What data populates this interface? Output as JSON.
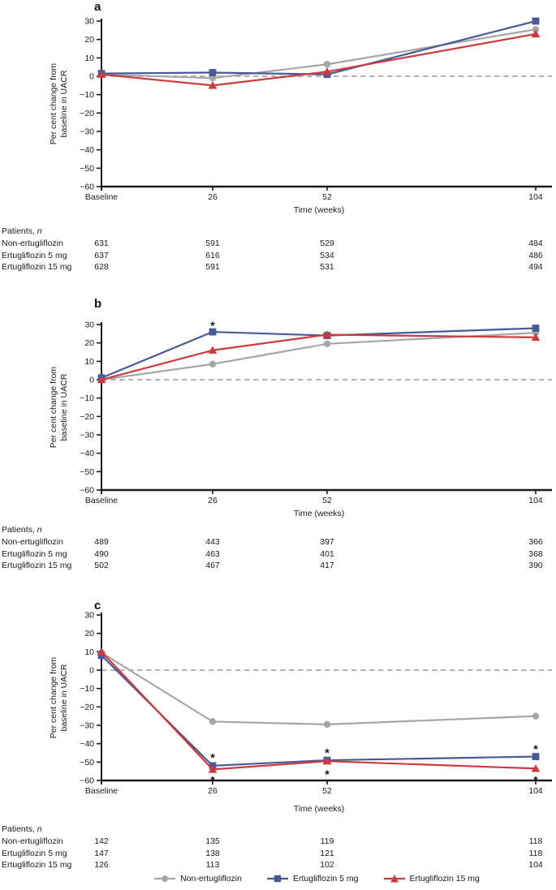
{
  "figure": {
    "legend": [
      {
        "label": "Non-ertugliflozin",
        "marker": "circle",
        "color": "#a6a6a6"
      },
      {
        "label": "Ertugliflozin 5 mg",
        "marker": "square",
        "color": "#475a96"
      },
      {
        "label": "Ertugliflozin 15 mg",
        "marker": "triangle",
        "color": "#cb3b3e"
      }
    ],
    "colors": {
      "axis": "#1a1a1a",
      "zero_line": "#b3b3b3",
      "gray_series": "#a6a6a6",
      "blue_series": "#475a96",
      "red_series": "#cb3b3e"
    }
  },
  "chart_data": [
    {
      "type": "line",
      "panel": "a",
      "xlabel": "Time (weeks)",
      "ylabel": "Per cent change from\nbaseline in UACR",
      "x_tick_labels": [
        "Baseline",
        "26",
        "52",
        "104"
      ],
      "x_weeks": [
        0,
        26,
        52,
        104
      ],
      "ylim": [
        -60,
        30
      ],
      "y_ticks": [
        30,
        20,
        10,
        0,
        -10,
        -20,
        -30,
        -40,
        -50,
        -60
      ],
      "zero_reference_line": true,
      "legend_position": "none",
      "grid": false,
      "series": [
        {
          "name": "Non-ertugliflozin",
          "marker": "circle",
          "color": "#a6a6a6",
          "values": [
            1,
            -1,
            6.5,
            25.5
          ]
        },
        {
          "name": "Ertugliflozin 5 mg",
          "marker": "square",
          "color": "#475a96",
          "values": [
            1.5,
            2,
            1,
            30
          ]
        },
        {
          "name": "Ertugliflozin 15 mg",
          "marker": "triangle",
          "color": "#cb3b3e",
          "values": [
            1,
            -5,
            2.5,
            23
          ]
        }
      ],
      "significance_stars": [],
      "patients": {
        "title_prefix": "Patients, ",
        "title_italic": "n",
        "rows": [
          {
            "label": "Non-ertugliflozin",
            "values": [
              "631",
              "591",
              "529",
              "484"
            ]
          },
          {
            "label": "Ertugliflozin 5 mg",
            "values": [
              "637",
              "616",
              "534",
              "486"
            ]
          },
          {
            "label": "Ertugliflozin 15 mg",
            "values": [
              "628",
              "591",
              "531",
              "494"
            ]
          }
        ]
      }
    },
    {
      "type": "line",
      "panel": "b",
      "xlabel": "Time (weeks)",
      "ylabel": "Per cent change from\nbaseline in UACR",
      "x_tick_labels": [
        "Baseline",
        "26",
        "52",
        "104"
      ],
      "x_weeks": [
        0,
        26,
        52,
        104
      ],
      "ylim": [
        -60,
        30
      ],
      "y_ticks": [
        30,
        20,
        10,
        0,
        -10,
        -20,
        -30,
        -40,
        -50,
        -60
      ],
      "zero_reference_line": true,
      "legend_position": "none",
      "grid": false,
      "series": [
        {
          "name": "Non-ertugliflozin",
          "marker": "circle",
          "color": "#a6a6a6",
          "values": [
            0,
            8.5,
            19.5,
            25.5
          ]
        },
        {
          "name": "Ertugliflozin 5 mg",
          "marker": "square",
          "color": "#475a96",
          "values": [
            1,
            26,
            24,
            28
          ]
        },
        {
          "name": "Ertugliflozin 15 mg",
          "marker": "triangle",
          "color": "#cb3b3e",
          "values": [
            0,
            16,
            24.5,
            23
          ]
        }
      ],
      "significance_stars": [
        {
          "x_index": 1,
          "value": 30.5,
          "text": "*"
        }
      ],
      "patients": {
        "title_prefix": "Patients, ",
        "title_italic": "n",
        "rows": [
          {
            "label": "Non-ertugliflozin",
            "values": [
              "489",
              "443",
              "397",
              "366"
            ]
          },
          {
            "label": "Ertugliflozin 5 mg",
            "values": [
              "490",
              "463",
              "401",
              "368"
            ]
          },
          {
            "label": "Ertugliflozin 15 mg",
            "values": [
              "502",
              "467",
              "417",
              "390"
            ]
          }
        ]
      }
    },
    {
      "type": "line",
      "panel": "c",
      "xlabel": "Time (weeks)",
      "ylabel": "Per cent change from\nbaseline in UACR",
      "x_tick_labels": [
        "Baseline",
        "26",
        "52",
        "104"
      ],
      "x_weeks": [
        0,
        26,
        52,
        104
      ],
      "ylim": [
        -60,
        30
      ],
      "y_ticks": [
        30,
        20,
        10,
        0,
        -10,
        -20,
        -30,
        -40,
        -50,
        -60
      ],
      "zero_reference_line": true,
      "legend_position": "none",
      "grid": false,
      "series": [
        {
          "name": "Non-ertugliflozin",
          "marker": "circle",
          "color": "#a6a6a6",
          "values": [
            9.5,
            -28,
            -29.5,
            -25
          ]
        },
        {
          "name": "Ertugliflozin 5 mg",
          "marker": "square",
          "color": "#475a96",
          "values": [
            8,
            -52,
            -49,
            -47
          ]
        },
        {
          "name": "Ertugliflozin 15 mg",
          "marker": "triangle",
          "color": "#cb3b3e",
          "values": [
            10,
            -54,
            -49.5,
            -53.5
          ]
        }
      ],
      "significance_stars": [
        {
          "x_index": 1,
          "value": -46.5,
          "text": "*"
        },
        {
          "x_index": 1,
          "value": -59,
          "text": "*"
        },
        {
          "x_index": 2,
          "value": -44,
          "text": "*"
        },
        {
          "x_index": 2,
          "value": -55.5,
          "text": "*"
        },
        {
          "x_index": 3,
          "value": -42,
          "text": "*"
        },
        {
          "x_index": 3,
          "value": -59,
          "text": "*"
        }
      ],
      "patients": {
        "title_prefix": "Patients, ",
        "title_italic": "n",
        "rows": [
          {
            "label": "Non-ertugliflozin",
            "values": [
              "142",
              "135",
              "119",
              "118"
            ]
          },
          {
            "label": "Ertugliflozin 5 mg",
            "values": [
              "147",
              "138",
              "121",
              "118"
            ]
          },
          {
            "label": "Ertugliflozin 15 mg",
            "values": [
              "126",
              "113",
              "102",
              "104"
            ]
          }
        ]
      }
    }
  ]
}
